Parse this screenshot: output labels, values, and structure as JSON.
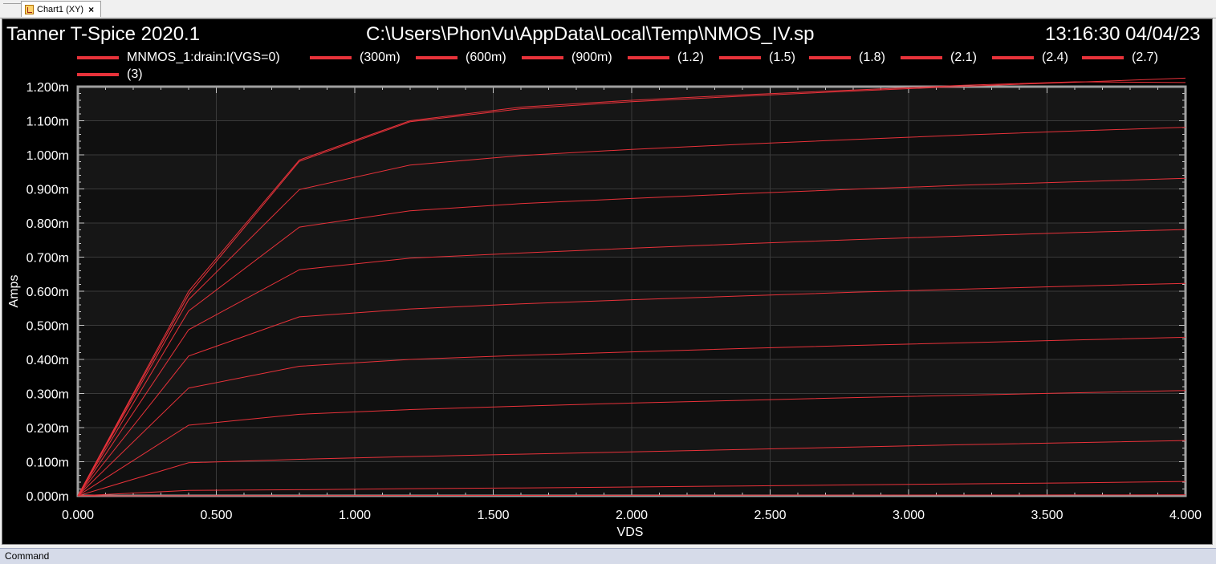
{
  "tab": {
    "label": "Chart1 (XY)",
    "close": "×"
  },
  "header": {
    "left": "Tanner T-Spice 2020.1",
    "center": "C:\\Users\\PhonVu\\AppData\\Local\\Temp\\NMOS_IV.sp",
    "right": "13:16:30 04/04/23"
  },
  "command_bar": {
    "label": "Command"
  },
  "colors": {
    "series": "#e8323a",
    "background": "#000000",
    "plot_bg": "#101010",
    "grid": "#3a3a3a"
  },
  "chart_data": {
    "type": "line",
    "xlabel": "VDS",
    "ylabel": "Amps",
    "xlim": [
      0,
      4.0
    ],
    "ylim": [
      0,
      0.0012
    ],
    "xticks": [
      "0.000",
      "0.500",
      "1.000",
      "1.500",
      "2.000",
      "2.500",
      "3.000",
      "3.500",
      "4.000"
    ],
    "yticks": [
      "0.000m",
      "0.100m",
      "0.200m",
      "0.300m",
      "0.400m",
      "0.500m",
      "0.600m",
      "0.700m",
      "0.800m",
      "0.900m",
      "1.000m",
      "1.100m",
      "1.200m"
    ],
    "grid": true,
    "legend": "top",
    "x": [
      0,
      0.4,
      0.8,
      1.2,
      1.6,
      2.0,
      2.4,
      2.8,
      3.2,
      3.6,
      4.0
    ],
    "series": [
      {
        "name": "MNMOS_1:drain:I(VGS=0)",
        "values": [
          0,
          3e-07,
          6e-07,
          9e-07,
          1.2e-06,
          1.5e-06,
          1.8e-06,
          2.1e-06,
          2.4e-06,
          2.7e-06,
          3e-06
        ]
      },
      {
        "name": "(300m)",
        "values": [
          0,
          1.6e-05,
          1.8e-05,
          2.1e-05,
          2.3e-05,
          2.6e-05,
          2.9e-05,
          3.2e-05,
          3.5e-05,
          3.8e-05,
          4.2e-05
        ]
      },
      {
        "name": "(600m)",
        "values": [
          0,
          9.7e-05,
          0.000107,
          0.000115,
          0.000122,
          0.000129,
          0.000136,
          0.000143,
          0.00015,
          0.000156,
          0.000162
        ]
      },
      {
        "name": "(900m)",
        "values": [
          0,
          0.000207,
          0.000239,
          0.000253,
          0.000263,
          0.000272,
          0.00028,
          0.000288,
          0.000295,
          0.000302,
          0.000309
        ]
      },
      {
        "name": "(1.2)",
        "values": [
          0,
          0.000316,
          0.00038,
          0.0004,
          0.000412,
          0.000422,
          0.000432,
          0.000441,
          0.000449,
          0.000457,
          0.000465
        ]
      },
      {
        "name": "(1.5)",
        "values": [
          0,
          0.00041,
          0.000525,
          0.000548,
          0.000563,
          0.000575,
          0.000586,
          0.000597,
          0.000606,
          0.000615,
          0.000623
        ]
      },
      {
        "name": "(1.8)",
        "values": [
          0,
          0.000487,
          0.000663,
          0.000697,
          0.000712,
          0.000726,
          0.000739,
          0.000751,
          0.000762,
          0.000772,
          0.000781
        ]
      },
      {
        "name": "(2.1)",
        "values": [
          0,
          0.000542,
          0.000788,
          0.000836,
          0.000857,
          0.000872,
          0.000886,
          0.000899,
          0.000911,
          0.000921,
          0.000931
        ]
      },
      {
        "name": "(2.4)",
        "values": [
          0,
          0.000575,
          0.000898,
          0.00097,
          0.000998,
          0.001016,
          0.001031,
          0.001045,
          0.001058,
          0.00107,
          0.001081
        ]
      },
      {
        "name": "(2.7)",
        "values": [
          0,
          0.00059,
          0.000981,
          0.001097,
          0.001135,
          0.001156,
          0.001172,
          0.001187,
          0.001201,
          0.001213,
          0.001225
        ]
      },
      {
        "name": "(3)",
        "values": [
          0,
          0.0006,
          0.000985,
          0.0011,
          0.00114,
          0.00116,
          0.001176,
          0.00119,
          0.001204,
          0.001214,
          0.001212
        ]
      }
    ]
  }
}
